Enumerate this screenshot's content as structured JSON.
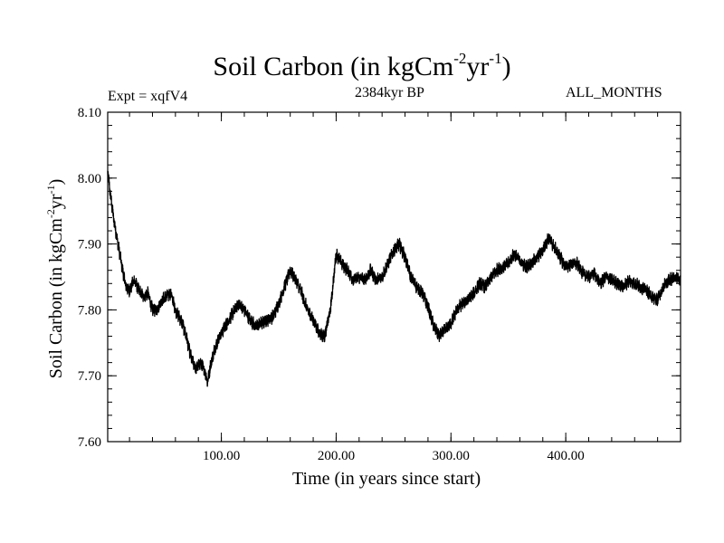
{
  "chart_data": {
    "type": "line",
    "title": "Soil Carbon (in kgCm",
    "title_unit_exp1": "-2",
    "title_unit_mid": "yr",
    "title_unit_exp2": "-1",
    "title_close": ")",
    "expt_label": "Expt = xqfV4",
    "subtitle": "2384kyr BP",
    "period_label": "ALL_MONTHS",
    "xlabel": "Time (in years since start)",
    "ylabel_main": "Soil Carbon (in kgCm",
    "ylabel_exp1": "-2",
    "ylabel_mid": "yr",
    "ylabel_exp2": "-1",
    "ylabel_close": ")",
    "xlim": [
      1,
      500
    ],
    "ylim": [
      7.6,
      8.1
    ],
    "x_ticks": [
      {
        "value": 100,
        "label": "100.00"
      },
      {
        "value": 200,
        "label": "200.00"
      },
      {
        "value": 300,
        "label": "300.00"
      },
      {
        "value": 400,
        "label": "400.00"
      }
    ],
    "x_minor_step": 20,
    "y_ticks": [
      {
        "value": 7.6,
        "label": "7.60"
      },
      {
        "value": 7.7,
        "label": "7.70"
      },
      {
        "value": 7.8,
        "label": "7.80"
      },
      {
        "value": 7.9,
        "label": "7.90"
      },
      {
        "value": 8.0,
        "label": "8.00"
      },
      {
        "value": 8.1,
        "label": "8.10"
      }
    ],
    "y_minor_step": 0.02,
    "grid": false,
    "line_color": "#000000",
    "noise_amplitude": 0.008,
    "series": [
      {
        "name": "Soil Carbon",
        "x": [
          1,
          3,
          6,
          10,
          14,
          17,
          20,
          24,
          28,
          32,
          36,
          40,
          44,
          48,
          52,
          56,
          60,
          63,
          66,
          70,
          74,
          78,
          82,
          86,
          88,
          91,
          95,
          100,
          105,
          110,
          115,
          120,
          125,
          130,
          135,
          140,
          145,
          150,
          155,
          160,
          165,
          170,
          175,
          180,
          185,
          190,
          195,
          200,
          205,
          210,
          215,
          220,
          225,
          230,
          235,
          240,
          245,
          250,
          255,
          260,
          265,
          270,
          275,
          280,
          285,
          290,
          295,
          300,
          305,
          310,
          315,
          320,
          325,
          330,
          335,
          340,
          345,
          350,
          355,
          360,
          365,
          370,
          375,
          380,
          385,
          390,
          395,
          400,
          405,
          410,
          415,
          420,
          425,
          430,
          435,
          440,
          445,
          450,
          455,
          460,
          465,
          470,
          475,
          480,
          485,
          490,
          495,
          500
        ],
        "values": [
          8.01,
          7.98,
          7.94,
          7.9,
          7.86,
          7.835,
          7.83,
          7.845,
          7.83,
          7.82,
          7.825,
          7.8,
          7.8,
          7.815,
          7.82,
          7.825,
          7.8,
          7.79,
          7.78,
          7.755,
          7.725,
          7.71,
          7.72,
          7.705,
          7.69,
          7.72,
          7.745,
          7.765,
          7.78,
          7.795,
          7.81,
          7.8,
          7.785,
          7.775,
          7.78,
          7.785,
          7.79,
          7.81,
          7.835,
          7.86,
          7.845,
          7.825,
          7.8,
          7.785,
          7.765,
          7.76,
          7.8,
          7.885,
          7.87,
          7.86,
          7.845,
          7.85,
          7.845,
          7.86,
          7.845,
          7.85,
          7.87,
          7.89,
          7.9,
          7.88,
          7.85,
          7.835,
          7.825,
          7.805,
          7.775,
          7.76,
          7.77,
          7.78,
          7.8,
          7.81,
          7.815,
          7.825,
          7.84,
          7.835,
          7.85,
          7.86,
          7.865,
          7.87,
          7.885,
          7.875,
          7.865,
          7.87,
          7.88,
          7.89,
          7.91,
          7.895,
          7.88,
          7.865,
          7.87,
          7.87,
          7.855,
          7.85,
          7.855,
          7.84,
          7.85,
          7.845,
          7.84,
          7.835,
          7.845,
          7.84,
          7.835,
          7.83,
          7.82,
          7.815,
          7.835,
          7.845,
          7.85,
          7.845
        ]
      }
    ]
  }
}
